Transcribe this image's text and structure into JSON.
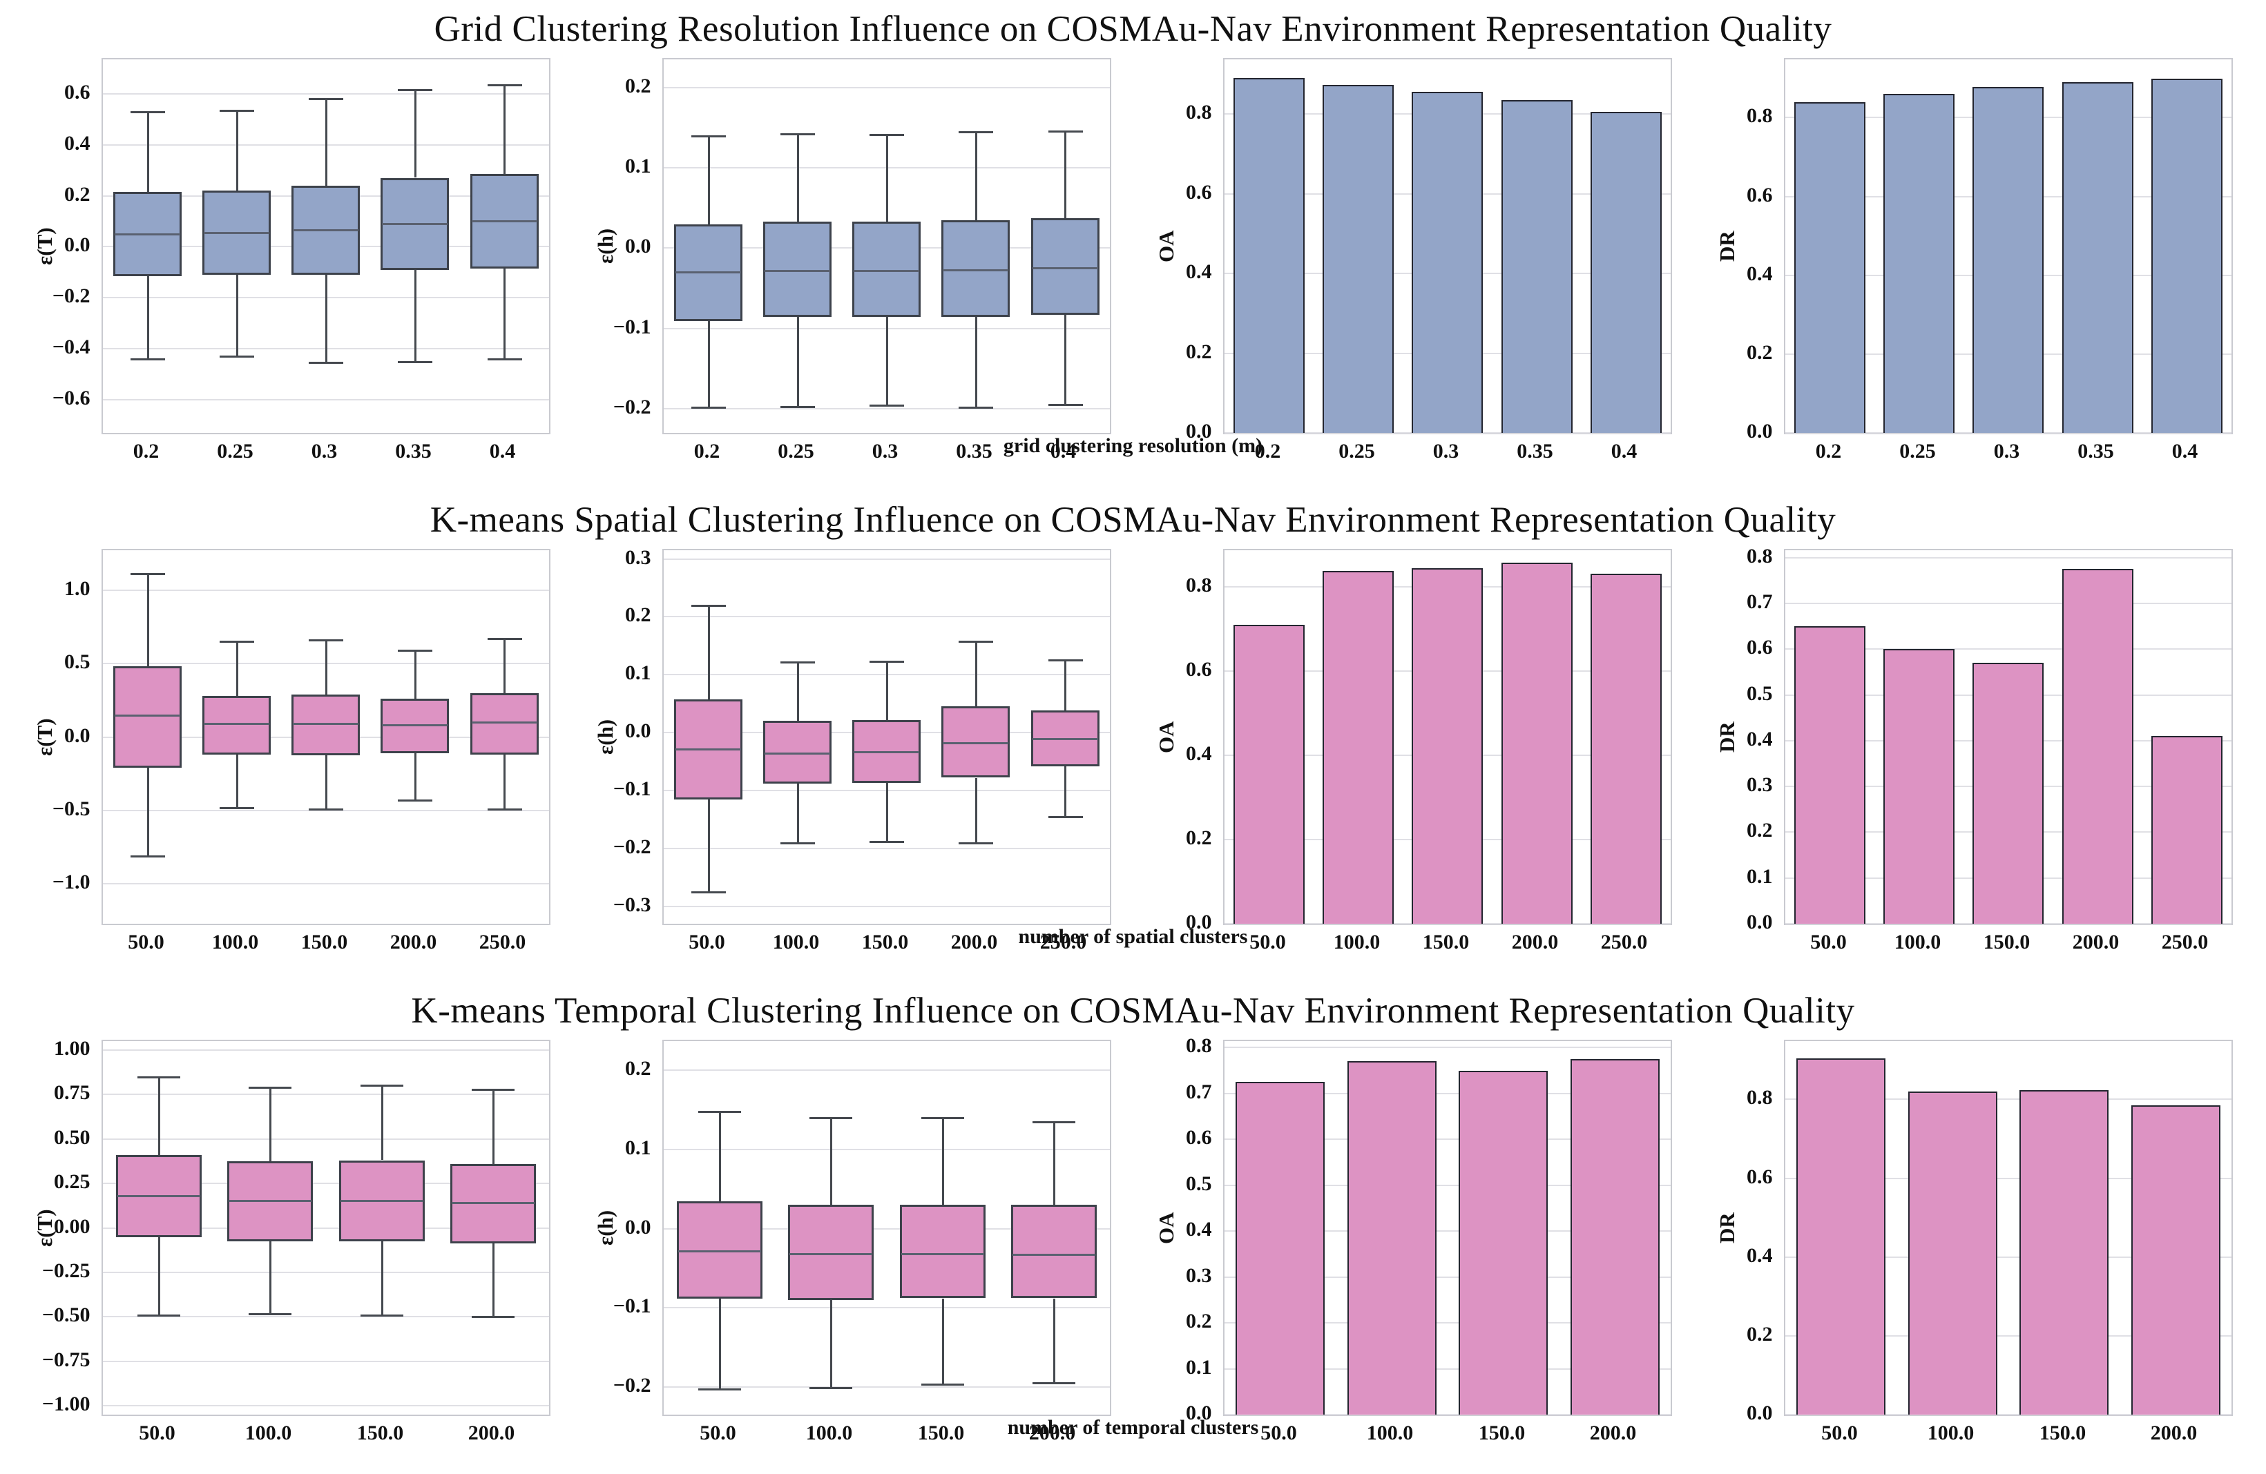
{
  "page": {
    "background": "#ffffff",
    "text_color": "#111111"
  },
  "style": {
    "grid_color": "#e0e0e5",
    "axis_border_color": "#c9cad0",
    "box_edge_color": "#3d424b",
    "median_color": "#5a6170",
    "whisker_color": "#45494f",
    "bar_edge_color": "#23252f",
    "blue_fill": "#93a5c8",
    "pink_fill": "#dd93c3"
  },
  "chart_data": [
    {
      "type": "mixed",
      "title": "Grid Clustering Resolution Influence on COSMAu-Nav Environment Representation Quality",
      "xlabel": "grid clustering resolution (m)",
      "fill_color": "#93a5c8",
      "categories": [
        "0.2",
        "0.25",
        "0.3",
        "0.35",
        "0.4"
      ],
      "subplots": [
        {
          "type": "box",
          "ylabel": "ε(T)",
          "ylim": [
            -0.73,
            0.735
          ],
          "yticks": [
            0.6,
            0.4,
            0.2,
            0.0,
            -0.2,
            -0.4,
            -0.6
          ],
          "ytick_labels": [
            "0.6",
            "0.4",
            "0.2",
            "0.0",
            "−0.2",
            "−0.4",
            "−0.6"
          ],
          "stats": [
            {
              "whisker_low": -0.44,
              "q1": -0.115,
              "median": 0.05,
              "q3": 0.215,
              "whisker_high": 0.53
            },
            {
              "whisker_low": -0.43,
              "q1": -0.11,
              "median": 0.055,
              "q3": 0.22,
              "whisker_high": 0.535
            },
            {
              "whisker_low": -0.455,
              "q1": -0.11,
              "median": 0.065,
              "q3": 0.24,
              "whisker_high": 0.58
            },
            {
              "whisker_low": -0.45,
              "q1": -0.09,
              "median": 0.09,
              "q3": 0.27,
              "whisker_high": 0.615
            },
            {
              "whisker_low": -0.44,
              "q1": -0.085,
              "median": 0.1,
              "q3": 0.285,
              "whisker_high": 0.635
            }
          ]
        },
        {
          "type": "box",
          "ylabel": "ε(h)",
          "ylim": [
            -0.23,
            0.235
          ],
          "yticks": [
            0.2,
            0.1,
            0.0,
            -0.1,
            -0.2
          ],
          "ytick_labels": [
            "0.2",
            "0.1",
            "0.0",
            "−0.1",
            "−0.2"
          ],
          "stats": [
            {
              "whisker_low": -0.198,
              "q1": -0.09,
              "median": -0.03,
              "q3": 0.03,
              "whisker_high": 0.14
            },
            {
              "whisker_low": -0.197,
              "q1": -0.086,
              "median": -0.028,
              "q3": 0.033,
              "whisker_high": 0.142
            },
            {
              "whisker_low": -0.196,
              "q1": -0.086,
              "median": -0.028,
              "q3": 0.033,
              "whisker_high": 0.141
            },
            {
              "whisker_low": -0.198,
              "q1": -0.085,
              "median": -0.027,
              "q3": 0.035,
              "whisker_high": 0.145
            },
            {
              "whisker_low": -0.195,
              "q1": -0.083,
              "median": -0.025,
              "q3": 0.037,
              "whisker_high": 0.146
            }
          ]
        },
        {
          "type": "bar",
          "ylabel": "OA",
          "ylim": [
            0,
            0.937
          ],
          "yticks": [
            0.8,
            0.6,
            0.4,
            0.2,
            0.0
          ],
          "ytick_labels": [
            "0.8",
            "0.6",
            "0.4",
            "0.2",
            "0.0"
          ],
          "values": [
            0.89,
            0.873,
            0.855,
            0.835,
            0.805
          ]
        },
        {
          "type": "bar",
          "ylabel": "DR",
          "ylim": [
            0,
            0.948
          ],
          "yticks": [
            0.8,
            0.6,
            0.4,
            0.2,
            0.0
          ],
          "ytick_labels": [
            "0.8",
            "0.6",
            "0.4",
            "0.2",
            "0.0"
          ],
          "values": [
            0.84,
            0.861,
            0.878,
            0.89,
            0.899
          ]
        }
      ]
    },
    {
      "type": "mixed",
      "title": "K-means Spatial Clustering Influence on COSMAu-Nav Environment Representation Quality",
      "xlabel": "number of spatial clusters",
      "fill_color": "#dd93c3",
      "categories": [
        "50.0",
        "100.0",
        "150.0",
        "200.0",
        "250.0"
      ],
      "subplots": [
        {
          "type": "box",
          "ylabel": "ε(T)",
          "ylim": [
            -1.27,
            1.27
          ],
          "yticks": [
            1.0,
            0.5,
            0.0,
            -0.5,
            -1.0
          ],
          "ytick_labels": [
            "1.0",
            "0.5",
            "0.0",
            "−0.5",
            "−1.0"
          ],
          "stats": [
            {
              "whisker_low": -0.81,
              "q1": -0.21,
              "median": 0.15,
              "q3": 0.48,
              "whisker_high": 1.11
            },
            {
              "whisker_low": -0.48,
              "q1": -0.12,
              "median": 0.09,
              "q3": 0.28,
              "whisker_high": 0.65
            },
            {
              "whisker_low": -0.49,
              "q1": -0.125,
              "median": 0.09,
              "q3": 0.29,
              "whisker_high": 0.66
            },
            {
              "whisker_low": -0.43,
              "q1": -0.11,
              "median": 0.08,
              "q3": 0.26,
              "whisker_high": 0.59
            },
            {
              "whisker_low": -0.49,
              "q1": -0.12,
              "median": 0.1,
              "q3": 0.3,
              "whisker_high": 0.67
            }
          ]
        },
        {
          "type": "box",
          "ylabel": "ε(h)",
          "ylim": [
            -0.33,
            0.315
          ],
          "yticks": [
            0.3,
            0.2,
            0.1,
            0.0,
            -0.1,
            -0.2,
            -0.3
          ],
          "ytick_labels": [
            "0.3",
            "0.2",
            "0.1",
            "0.0",
            "−0.1",
            "−0.2",
            "−0.3"
          ],
          "stats": [
            {
              "whisker_low": -0.275,
              "q1": -0.115,
              "median": -0.028,
              "q3": 0.058,
              "whisker_high": 0.22
            },
            {
              "whisker_low": -0.19,
              "q1": -0.088,
              "median": -0.035,
              "q3": 0.02,
              "whisker_high": 0.122
            },
            {
              "whisker_low": -0.188,
              "q1": -0.086,
              "median": -0.033,
              "q3": 0.022,
              "whisker_high": 0.123
            },
            {
              "whisker_low": -0.19,
              "q1": -0.078,
              "median": -0.018,
              "q3": 0.045,
              "whisker_high": 0.158
            },
            {
              "whisker_low": -0.145,
              "q1": -0.058,
              "median": -0.01,
              "q3": 0.038,
              "whisker_high": 0.125
            }
          ]
        },
        {
          "type": "bar",
          "ylabel": "OA",
          "ylim": [
            0,
            0.887
          ],
          "yticks": [
            0.8,
            0.6,
            0.4,
            0.2,
            0.0
          ],
          "ytick_labels": [
            "0.8",
            "0.6",
            "0.4",
            "0.2",
            "0.0"
          ],
          "values": [
            0.71,
            0.838,
            0.845,
            0.858,
            0.831
          ]
        },
        {
          "type": "bar",
          "ylabel": "DR",
          "ylim": [
            0,
            0.816
          ],
          "yticks": [
            0.8,
            0.7,
            0.6,
            0.5,
            0.4,
            0.3,
            0.2,
            0.1,
            0.0
          ],
          "ytick_labels": [
            "0.8",
            "0.7",
            "0.6",
            "0.5",
            "0.4",
            "0.3",
            "0.2",
            "0.1",
            "0.0"
          ],
          "values": [
            0.65,
            0.6,
            0.57,
            0.775,
            0.41
          ]
        }
      ]
    },
    {
      "type": "mixed",
      "title": "K-means Temporal Clustering Influence on COSMAu-Nav Environment Representation Quality",
      "xlabel": "number of temporal clusters",
      "fill_color": "#dd93c3",
      "categories": [
        "50.0",
        "100.0",
        "150.0",
        "200.0"
      ],
      "subplots": [
        {
          "type": "box",
          "ylabel": "ε(T)",
          "ylim": [
            -1.05,
            1.05
          ],
          "yticks": [
            1.0,
            0.75,
            0.5,
            0.25,
            0.0,
            -0.25,
            -0.5,
            -0.75,
            -1.0
          ],
          "ytick_labels": [
            "1.00",
            "0.75",
            "0.50",
            "0.25",
            "0.00",
            "−0.25",
            "−0.50",
            "−0.75",
            "−1.00"
          ],
          "stats": [
            {
              "whisker_low": -0.49,
              "q1": -0.05,
              "median": 0.18,
              "q3": 0.41,
              "whisker_high": 0.85
            },
            {
              "whisker_low": -0.485,
              "q1": -0.075,
              "median": 0.155,
              "q3": 0.375,
              "whisker_high": 0.79
            },
            {
              "whisker_low": -0.49,
              "q1": -0.075,
              "median": 0.155,
              "q3": 0.38,
              "whisker_high": 0.8
            },
            {
              "whisker_low": -0.5,
              "q1": -0.085,
              "median": 0.14,
              "q3": 0.36,
              "whisker_high": 0.78
            }
          ]
        },
        {
          "type": "box",
          "ylabel": "ε(h)",
          "ylim": [
            -0.235,
            0.237
          ],
          "yticks": [
            0.2,
            0.1,
            0.0,
            -0.1,
            -0.2
          ],
          "ytick_labels": [
            "0.2",
            "0.1",
            "0.0",
            "−0.1",
            "−0.2"
          ],
          "stats": [
            {
              "whisker_low": -0.203,
              "q1": -0.088,
              "median": -0.028,
              "q3": 0.035,
              "whisker_high": 0.148
            },
            {
              "whisker_low": -0.201,
              "q1": -0.09,
              "median": -0.032,
              "q3": 0.03,
              "whisker_high": 0.14
            },
            {
              "whisker_low": -0.197,
              "q1": -0.088,
              "median": -0.032,
              "q3": 0.03,
              "whisker_high": 0.14
            },
            {
              "whisker_low": -0.195,
              "q1": -0.088,
              "median": -0.033,
              "q3": 0.03,
              "whisker_high": 0.135
            }
          ]
        },
        {
          "type": "bar",
          "ylabel": "OA",
          "ylim": [
            0,
            0.814
          ],
          "yticks": [
            0.8,
            0.7,
            0.6,
            0.5,
            0.4,
            0.3,
            0.2,
            0.1,
            0.0
          ],
          "ytick_labels": [
            "0.8",
            "0.7",
            "0.6",
            "0.5",
            "0.4",
            "0.3",
            "0.2",
            "0.1",
            "0.0"
          ],
          "values": [
            0.725,
            0.77,
            0.75,
            0.775
          ]
        },
        {
          "type": "bar",
          "ylabel": "DR",
          "ylim": [
            0,
            0.948
          ],
          "yticks": [
            0.8,
            0.6,
            0.4,
            0.2,
            0.0
          ],
          "ytick_labels": [
            "0.8",
            "0.6",
            "0.4",
            "0.2",
            "0.0"
          ],
          "values": [
            0.905,
            0.82,
            0.823,
            0.785
          ]
        }
      ]
    }
  ]
}
